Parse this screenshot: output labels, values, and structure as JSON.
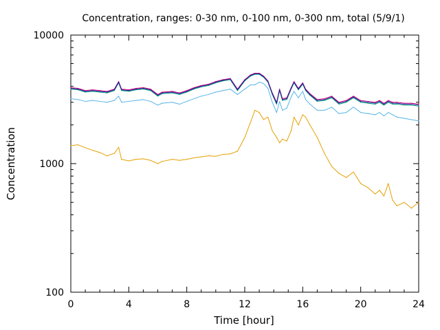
{
  "chart_data": {
    "type": "line",
    "title": "Concentration, ranges: 0-30 nm, 0-100 nm, 0-300 nm, total (5/9/1)",
    "xlabel": "Time [hour]",
    "ylabel": "Concentration",
    "xlim": [
      0,
      24
    ],
    "ylim": [
      100,
      10000
    ],
    "yscale": "log",
    "grid": false,
    "legend": "none",
    "x_ticks": [
      0,
      4,
      8,
      12,
      16,
      20,
      24
    ],
    "x_tick_labels": [
      "0",
      "4",
      "8",
      "12",
      "16",
      "20",
      "24"
    ],
    "y_ticks": [
      100,
      1000,
      10000
    ],
    "y_tick_labels": [
      "100",
      "1000",
      "10000"
    ],
    "series": [
      {
        "color": "#e69f00",
        "x": [
          0,
          0.5,
          1,
          1.5,
          2,
          2.5,
          3,
          3.3,
          3.5,
          4,
          4.5,
          5,
          5.5,
          6,
          6.3,
          7,
          7.5,
          8,
          8.5,
          9,
          9.5,
          10,
          10.5,
          11,
          11.5,
          12,
          12.4,
          12.7,
          13,
          13.3,
          13.6,
          13.9,
          14.2,
          14.4,
          14.6,
          14.9,
          15.2,
          15.4,
          15.7,
          16.0,
          16.2,
          16.5,
          17,
          17.5,
          18,
          18.5,
          19,
          19.5,
          20,
          20.5,
          21,
          21.3,
          21.6,
          21.9,
          22.2,
          22.5,
          23,
          23.5,
          24
        ],
        "y": [
          1380,
          1400,
          1330,
          1270,
          1220,
          1150,
          1200,
          1340,
          1080,
          1050,
          1080,
          1090,
          1060,
          1000,
          1040,
          1080,
          1060,
          1080,
          1110,
          1130,
          1150,
          1140,
          1180,
          1190,
          1250,
          1600,
          2100,
          2600,
          2500,
          2200,
          2300,
          1800,
          1600,
          1450,
          1550,
          1500,
          1800,
          2300,
          2000,
          2400,
          2300,
          2000,
          1600,
          1200,
          950,
          840,
          780,
          860,
          700,
          650,
          580,
          620,
          560,
          700,
          520,
          470,
          500,
          450,
          500
        ]
      },
      {
        "color": "#56b4e9",
        "x": [
          0,
          0.5,
          1,
          1.5,
          2,
          2.5,
          3,
          3.3,
          3.5,
          4,
          4.5,
          5,
          5.5,
          6,
          6.3,
          7,
          7.5,
          8,
          8.5,
          9,
          9.5,
          10,
          10.5,
          11,
          11.5,
          12,
          12.4,
          12.7,
          13,
          13.3,
          13.6,
          13.9,
          14.2,
          14.4,
          14.6,
          14.9,
          15.2,
          15.4,
          15.7,
          16.0,
          16.2,
          16.5,
          17,
          17.5,
          18,
          18.5,
          19,
          19.5,
          20,
          20.5,
          21,
          21.3,
          21.6,
          21.9,
          22.2,
          22.5,
          23,
          23.5,
          24
        ],
        "y": [
          3200,
          3150,
          3050,
          3100,
          3050,
          3000,
          3100,
          3350,
          3000,
          3050,
          3100,
          3150,
          3050,
          2850,
          2950,
          3000,
          2900,
          3050,
          3200,
          3350,
          3450,
          3600,
          3700,
          3800,
          3450,
          3800,
          4100,
          4100,
          4300,
          4200,
          3850,
          3000,
          2500,
          3050,
          2600,
          2700,
          3300,
          3650,
          3250,
          3650,
          3150,
          2900,
          2600,
          2600,
          2750,
          2450,
          2500,
          2750,
          2500,
          2450,
          2400,
          2500,
          2350,
          2500,
          2400,
          2300,
          2250,
          2200,
          2150
        ]
      },
      {
        "color": "#009e73",
        "x": [
          0,
          0.5,
          1,
          1.5,
          2,
          2.5,
          3,
          3.3,
          3.5,
          4,
          4.5,
          5,
          5.5,
          6,
          6.3,
          7,
          7.5,
          8,
          8.5,
          9,
          9.5,
          10,
          10.5,
          11,
          11.5,
          12,
          12.4,
          12.7,
          13,
          13.3,
          13.6,
          13.9,
          14.2,
          14.4,
          14.6,
          14.9,
          15.2,
          15.4,
          15.7,
          16.0,
          16.2,
          16.5,
          17,
          17.5,
          18,
          18.5,
          19,
          19.5,
          20,
          20.5,
          21,
          21.3,
          21.6,
          21.9,
          22.2,
          22.5,
          23,
          23.5,
          24
        ],
        "y": [
          3800,
          3750,
          3600,
          3650,
          3600,
          3550,
          3700,
          4250,
          3700,
          3650,
          3750,
          3800,
          3700,
          3350,
          3500,
          3550,
          3450,
          3600,
          3800,
          3950,
          4050,
          4250,
          4400,
          4500,
          3700,
          4400,
          4800,
          4950,
          4950,
          4700,
          4300,
          3450,
          2900,
          3700,
          3100,
          3150,
          3800,
          4250,
          3750,
          4150,
          3700,
          3400,
          3050,
          3100,
          3250,
          2900,
          3000,
          3250,
          3000,
          2950,
          2900,
          3000,
          2850,
          3000,
          2900,
          2900,
          2850,
          2850,
          2800
        ]
      },
      {
        "color": "#cc0077",
        "x": [
          0,
          0.5,
          1,
          1.5,
          2,
          2.5,
          3,
          3.3,
          3.5,
          4,
          4.5,
          5,
          5.5,
          6,
          6.3,
          7,
          7.5,
          8,
          8.5,
          9,
          9.5,
          10,
          10.5,
          11,
          11.5,
          12,
          12.4,
          12.7,
          13,
          13.3,
          13.6,
          13.9,
          14.2,
          14.4,
          14.6,
          14.9,
          15.2,
          15.4,
          15.7,
          16.0,
          16.2,
          16.5,
          17,
          17.5,
          18,
          18.5,
          19,
          19.5,
          20,
          20.5,
          21,
          21.3,
          21.6,
          21.9,
          22.2,
          22.5,
          23,
          23.5,
          24
        ],
        "y": [
          3900,
          3850,
          3700,
          3750,
          3700,
          3650,
          3800,
          4350,
          3800,
          3750,
          3850,
          3900,
          3800,
          3450,
          3600,
          3650,
          3550,
          3700,
          3900,
          4050,
          4150,
          4350,
          4500,
          4600,
          3800,
          4500,
          4900,
          5050,
          5050,
          4800,
          4400,
          3550,
          3000,
          3800,
          3200,
          3250,
          3900,
          4350,
          3850,
          4250,
          3800,
          3500,
          3150,
          3200,
          3350,
          3000,
          3100,
          3350,
          3100,
          3050,
          3000,
          3100,
          2950,
          3100,
          3000,
          3000,
          2950,
          2950,
          2900
        ]
      },
      {
        "color": "#1f1f9f",
        "x": [
          0,
          0.5,
          1,
          1.5,
          2,
          2.5,
          3,
          3.3,
          3.5,
          4,
          4.5,
          5,
          5.5,
          6,
          6.3,
          7,
          7.5,
          8,
          8.5,
          9,
          9.5,
          10,
          10.5,
          11,
          11.5,
          12,
          12.4,
          12.7,
          13,
          13.3,
          13.6,
          13.9,
          14.2,
          14.4,
          14.6,
          14.9,
          15.2,
          15.4,
          15.7,
          16.0,
          16.2,
          16.5,
          17,
          17.5,
          18,
          18.5,
          19,
          19.5,
          20,
          20.5,
          21,
          21.3,
          21.6,
          21.9,
          22.2,
          22.5,
          23,
          23.5,
          24
        ],
        "y": [
          3850,
          3800,
          3650,
          3700,
          3650,
          3600,
          3750,
          4300,
          3750,
          3700,
          3800,
          3850,
          3750,
          3400,
          3550,
          3600,
          3500,
          3650,
          3850,
          4000,
          4100,
          4300,
          4450,
          4550,
          3750,
          4450,
          4850,
          5000,
          5000,
          4750,
          4350,
          3500,
          2950,
          3750,
          3150,
          3200,
          3850,
          4300,
          3800,
          4200,
          3750,
          3450,
          3100,
          3150,
          3300,
          2950,
          3050,
          3300,
          3050,
          3000,
          2950,
          3050,
          2900,
          3050,
          2950,
          2950,
          2900,
          2900,
          2850
        ]
      }
    ]
  }
}
